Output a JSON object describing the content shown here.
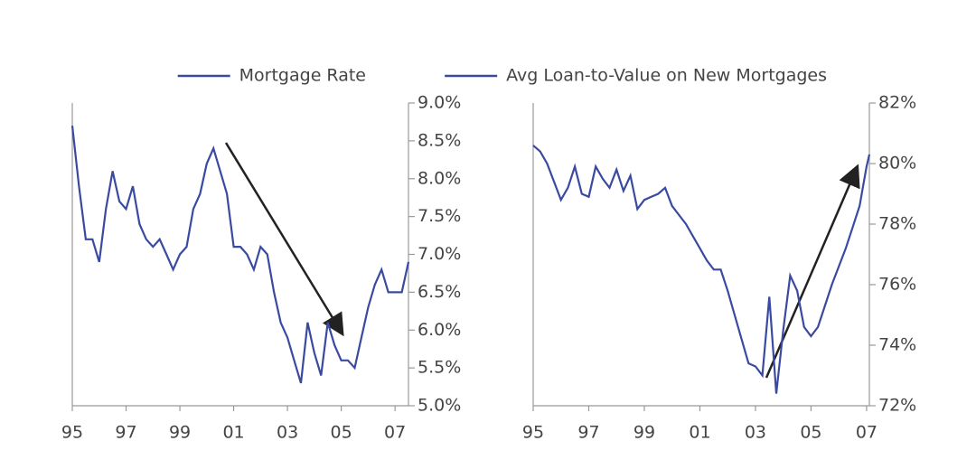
{
  "chart_data": [
    {
      "type": "line",
      "series": [
        {
          "name": "Mortgage Rate",
          "color": "#3a4aa0",
          "x": [
            1995.0,
            1995.25,
            1995.5,
            1995.75,
            1996.0,
            1996.25,
            1996.5,
            1996.75,
            1997.0,
            1997.25,
            1997.5,
            1997.75,
            1998.0,
            1998.25,
            1998.5,
            1998.75,
            1999.0,
            1999.25,
            1999.5,
            1999.75,
            2000.0,
            2000.25,
            2000.5,
            2000.75,
            2001.0,
            2001.25,
            2001.5,
            2001.75,
            2002.0,
            2002.25,
            2002.5,
            2002.75,
            2003.0,
            2003.25,
            2003.5,
            2003.75,
            2004.0,
            2004.25,
            2004.5,
            2004.75,
            2005.0,
            2005.25,
            2005.5,
            2005.75,
            2006.0,
            2006.25,
            2006.5,
            2006.75,
            2007.0,
            2007.25,
            2007.5
          ],
          "values": [
            8.7,
            7.9,
            7.2,
            7.2,
            6.9,
            7.6,
            8.1,
            7.7,
            7.6,
            7.9,
            7.4,
            7.2,
            7.1,
            7.2,
            7.0,
            6.8,
            7.0,
            7.1,
            7.6,
            7.8,
            8.2,
            8.4,
            8.1,
            7.8,
            7.1,
            7.1,
            7.0,
            6.8,
            7.1,
            7.0,
            6.5,
            6.1,
            5.9,
            5.6,
            5.3,
            6.1,
            5.7,
            5.4,
            6.1,
            5.8,
            5.6,
            5.6,
            5.5,
            5.9,
            6.3,
            6.6,
            6.8,
            6.5,
            6.5,
            6.5,
            6.9
          ]
        }
      ],
      "xlim": [
        1995,
        2007.5
      ],
      "xticks": [
        {
          "value": 1995,
          "label": "95"
        },
        {
          "value": 1997,
          "label": "97"
        },
        {
          "value": 1999,
          "label": "99"
        },
        {
          "value": 2001,
          "label": "01"
        },
        {
          "value": 2003,
          "label": "03"
        },
        {
          "value": 2005,
          "label": "05"
        },
        {
          "value": 2007,
          "label": "07"
        }
      ],
      "ylim": [
        5.0,
        9.0
      ],
      "yticks": [
        {
          "value": 5.0,
          "label": "5.0%"
        },
        {
          "value": 5.5,
          "label": "5.5%"
        },
        {
          "value": 6.0,
          "label": "6.0%"
        },
        {
          "value": 6.5,
          "label": "6.5%"
        },
        {
          "value": 7.0,
          "label": "7.0%"
        },
        {
          "value": 7.5,
          "label": "7.5%"
        },
        {
          "value": 8.0,
          "label": "8.0%"
        },
        {
          "value": 8.5,
          "label": "8.5%"
        },
        {
          "value": 9.0,
          "label": "9.0%"
        }
      ]
    },
    {
      "type": "line",
      "series": [
        {
          "name": "Avg Loan-to-Value on New Mortgages",
          "color": "#3a4aa0",
          "x": [
            1995.0,
            1995.25,
            1995.5,
            1995.75,
            1996.0,
            1996.25,
            1996.5,
            1996.75,
            1997.0,
            1997.25,
            1997.5,
            1997.75,
            1998.0,
            1998.25,
            1998.5,
            1998.75,
            1999.0,
            1999.25,
            1999.5,
            1999.75,
            2000.0,
            2000.25,
            2000.5,
            2000.75,
            2001.0,
            2001.25,
            2001.5,
            2001.75,
            2002.0,
            2002.25,
            2002.5,
            2002.75,
            2003.0,
            2003.25,
            2003.5,
            2003.75,
            2004.0,
            2004.25,
            2004.5,
            2004.75,
            2005.0,
            2005.25,
            2005.5,
            2005.75,
            2006.0,
            2006.25,
            2006.5,
            2006.75,
            2007.0,
            2007.1
          ],
          "values": [
            80.6,
            80.4,
            80.0,
            79.4,
            78.8,
            79.2,
            79.9,
            79.0,
            78.9,
            79.9,
            79.5,
            79.2,
            79.8,
            79.1,
            79.6,
            78.5,
            78.8,
            78.9,
            79.0,
            79.2,
            78.6,
            78.3,
            78.0,
            77.6,
            77.2,
            76.8,
            76.5,
            76.5,
            75.8,
            75.0,
            74.2,
            73.4,
            73.3,
            73.0,
            75.6,
            72.4,
            74.5,
            76.3,
            75.8,
            74.6,
            74.3,
            74.6,
            75.3,
            76.0,
            76.6,
            77.2,
            77.9,
            78.6,
            79.9,
            80.3
          ]
        }
      ],
      "xlim": [
        1995,
        2007.1
      ],
      "xticks": [
        {
          "value": 1995,
          "label": "95"
        },
        {
          "value": 1997,
          "label": "97"
        },
        {
          "value": 1999,
          "label": "99"
        },
        {
          "value": 2001,
          "label": "01"
        },
        {
          "value": 2003,
          "label": "03"
        },
        {
          "value": 2005,
          "label": "05"
        },
        {
          "value": 2007,
          "label": "07"
        }
      ],
      "ylim": [
        72,
        82
      ],
      "yticks": [
        {
          "value": 72,
          "label": "72%"
        },
        {
          "value": 74,
          "label": "74%"
        },
        {
          "value": 76,
          "label": "76%"
        },
        {
          "value": 78,
          "label": "78%"
        },
        {
          "value": 80,
          "label": "80%"
        },
        {
          "value": 82,
          "label": "82%"
        }
      ]
    }
  ]
}
